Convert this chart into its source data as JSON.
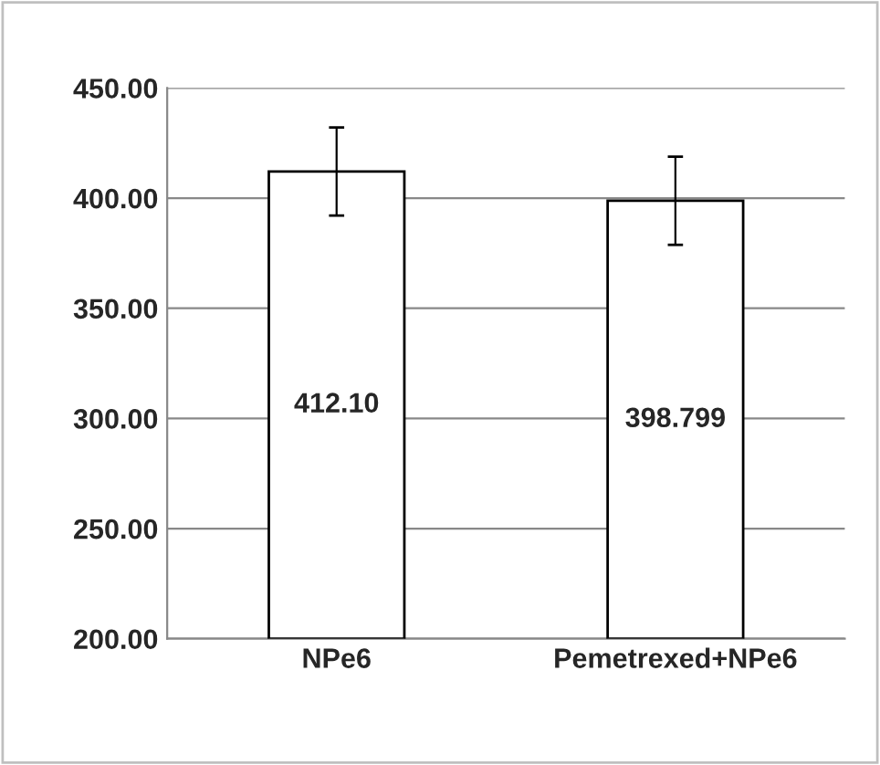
{
  "chart_data": {
    "type": "bar",
    "categories": [
      "NPe6",
      "Pemetrexed+NPe6"
    ],
    "values": [
      412.1,
      398.799
    ],
    "value_labels": [
      "412.10",
      "398.799"
    ],
    "errors": [
      20,
      20
    ],
    "color": "#ffffff",
    "ylim": [
      200,
      450
    ],
    "yticks": [
      {
        "value": 200,
        "label": "200.00"
      },
      {
        "value": 250,
        "label": "250.00"
      },
      {
        "value": 300,
        "label": "300.00"
      },
      {
        "value": 350,
        "label": "350.00"
      },
      {
        "value": 400,
        "label": "400.00"
      },
      {
        "value": 450,
        "label": "450.00"
      }
    ],
    "grid": "y"
  }
}
